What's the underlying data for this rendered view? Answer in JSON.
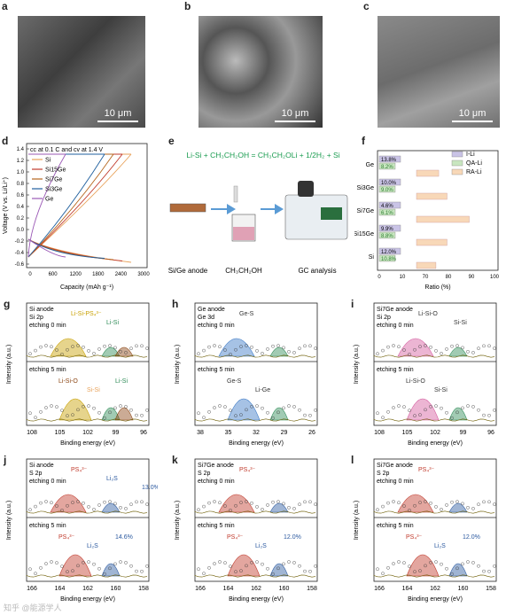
{
  "panels": {
    "a": {
      "label": "a",
      "scale": "10 μm"
    },
    "b": {
      "label": "b",
      "scale": "10 μm"
    },
    "c": {
      "label": "c",
      "scale": "10 μm"
    }
  },
  "d": {
    "label": "d",
    "note": "cc at 0.1 C and cv at 1.4 V",
    "ylabel": "Voltage (V vs. Li/Li⁺)",
    "xlabel": "Capacity (mAh g⁻¹)",
    "yticks": [
      "1.4",
      "1.2",
      "1.0",
      "0.8",
      "0.6",
      "0.4",
      "0.2",
      "0.0",
      "-0.2",
      "-0.4",
      "-0.6"
    ],
    "xticks": [
      "0",
      "600",
      "1200",
      "1800",
      "2400",
      "3000"
    ],
    "legend": [
      {
        "name": "Si",
        "color": "#e8a25a"
      },
      {
        "name": "Si15Ge",
        "color": "#c0392b"
      },
      {
        "name": "Si7Ge",
        "color": "#b5651d"
      },
      {
        "name": "Si3Ge",
        "color": "#1f5f9e"
      },
      {
        "name": "Ge",
        "color": "#9b59b6"
      }
    ]
  },
  "e": {
    "label": "e",
    "equation": "Li-Si + CH₃CH₂OH = CH₃CH₂OLi + 1/2H₂ + Si",
    "steps": [
      "Si/Ge anode",
      "CH₃CH₂OH",
      "GC analysis"
    ]
  },
  "f": {
    "label": "f",
    "xlabel": "Ratio (%)",
    "xticks": [
      "0",
      "10",
      "70",
      "80",
      "90",
      "100"
    ],
    "legend": [
      {
        "name": "I-Li",
        "color": "#c9c3e6"
      },
      {
        "name": "QA-Li",
        "color": "#c8e6c0"
      },
      {
        "name": "RA-Li",
        "color": "#f8d8b8"
      }
    ],
    "rows": [
      {
        "name": "Ge",
        "ili": "13.8%",
        "qali": "8.2%",
        "rali": 78
      },
      {
        "name": "Si3Ge",
        "ili": "10.0%",
        "qali": "9.0%",
        "rali": 81
      },
      {
        "name": "Si7Ge",
        "ili": "4.6%",
        "qali": "6.1%",
        "rali": 89
      },
      {
        "name": "Si15Ge",
        "ili": "9.9%",
        "qali": "8.8%",
        "rali": 81
      },
      {
        "name": "Si",
        "ili": "12.0%",
        "qali": "10.8%",
        "rali": 77
      }
    ]
  },
  "xps": [
    {
      "id": "g",
      "label": "g",
      "title": [
        "Si anode",
        "Si 2p",
        "etching 0 min"
      ],
      "etch2": "etching 5 min",
      "xticks": [
        "108",
        "105",
        "102",
        "99",
        "96"
      ],
      "xlabel": "Binding energy (eV)",
      "ylabel": "Intensity (a.u.)",
      "peaks_top": [
        {
          "t": "Li-Si-PS₄³⁻",
          "c": "#c8a000"
        },
        {
          "t": "Li-Si",
          "c": "#2e8b57"
        }
      ],
      "peaks_bot": [
        {
          "t": "Li-Si-O",
          "c": "#8b4513"
        },
        {
          "t": "Si-Si",
          "c": "#e8a25a"
        },
        {
          "t": "Li-Si",
          "c": "#2e8b57"
        }
      ]
    },
    {
      "id": "h",
      "label": "h",
      "title": [
        "Ge anode",
        "Ge 3d",
        "etching 0 min"
      ],
      "etch2": "etching 5 min",
      "xticks": [
        "38",
        "35",
        "32",
        "29",
        "26"
      ],
      "xlabel": "Binding energy (eV)",
      "ylabel": "Intensity (a.u.)",
      "peaks_top": [
        {
          "t": "Ge-S",
          "c": "#333"
        }
      ],
      "peaks_bot": [
        {
          "t": "Ge-S",
          "c": "#333"
        },
        {
          "t": "Li-Ge",
          "c": "#333"
        }
      ]
    },
    {
      "id": "i",
      "label": "i",
      "title": [
        "Si7Ge anode",
        "Si 2p",
        "etching 0 min"
      ],
      "etch2": "etching 5 min",
      "xticks": [
        "108",
        "105",
        "102",
        "99",
        "96"
      ],
      "xlabel": "Binding energy (eV)",
      "ylabel": "Intensity (a.u.)",
      "peaks_top": [
        {
          "t": "Li-Si-O",
          "c": "#333"
        },
        {
          "t": "Si-Si",
          "c": "#333"
        }
      ],
      "peaks_bot": [
        {
          "t": "Li-Si-O",
          "c": "#333"
        },
        {
          "t": "Si-Si",
          "c": "#333"
        }
      ]
    },
    {
      "id": "j",
      "label": "j",
      "title": [
        "Si anode",
        "S 2p",
        "etching 0 min"
      ],
      "etch2": "etching 5 min",
      "xticks": [
        "166",
        "164",
        "162",
        "160",
        "158"
      ],
      "xlabel": "Binding energy (eV)",
      "ylabel": "Intensity (a.u.)",
      "peaks_top": [
        {
          "t": "PS₄³⁻",
          "c": "#c0392b"
        },
        {
          "t": "Li₂S",
          "c": "#2c5aa0"
        },
        {
          "t": "13.0%",
          "c": "#2c5aa0"
        }
      ],
      "peaks_bot": [
        {
          "t": "PS₄³⁻",
          "c": "#c0392b"
        },
        {
          "t": "Li₂S",
          "c": "#2c5aa0"
        },
        {
          "t": "14.6%",
          "c": "#2c5aa0"
        }
      ]
    },
    {
      "id": "k",
      "label": "k",
      "title": [
        "Si7Ge anode",
        "S 2p",
        "etching 0 min"
      ],
      "etch2": "etching 5 min",
      "xticks": [
        "166",
        "164",
        "162",
        "160",
        "158"
      ],
      "xlabel": "Binding energy (eV)",
      "ylabel": "Intensity (a.u.)",
      "peaks_top": [
        {
          "t": "PS₄³⁻",
          "c": "#c0392b"
        }
      ],
      "peaks_bot": [
        {
          "t": "PS₄³⁻",
          "c": "#c0392b"
        },
        {
          "t": "Li₂S",
          "c": "#2c5aa0"
        },
        {
          "t": "12.0%",
          "c": "#2c5aa0"
        }
      ]
    },
    {
      "id": "l",
      "label": "l",
      "title": [
        "Si7Ge anode",
        "S 2p",
        "etching 0 min"
      ],
      "etch2": "etching 5 min",
      "xticks": [
        "166",
        "164",
        "162",
        "160",
        "158"
      ],
      "xlabel": "Binding energy (eV)",
      "ylabel": "Intensity (a.u.)",
      "peaks_top": [
        {
          "t": "PS₄³⁻",
          "c": "#c0392b"
        }
      ],
      "peaks_bot": [
        {
          "t": "PS₄³⁻",
          "c": "#c0392b"
        },
        {
          "t": "Li₂S",
          "c": "#2c5aa0"
        },
        {
          "t": "12.0%",
          "c": "#2c5aa0"
        }
      ]
    }
  ],
  "watermark": "知乎 @能源学人"
}
